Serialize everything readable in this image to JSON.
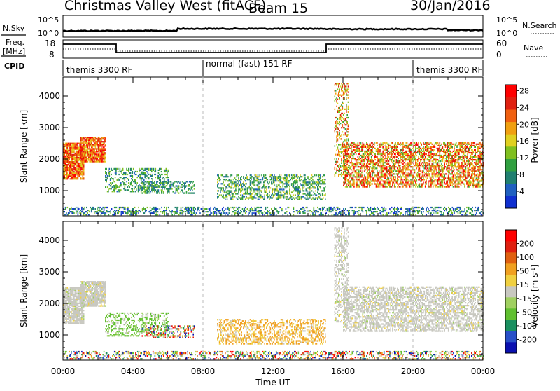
{
  "header": {
    "title": "Christmas Valley West (fitACF)",
    "beam": "Beam 15",
    "date": "30/Jan/2016"
  },
  "panels": {
    "nsky": {
      "left_label": "N.Sky",
      "left_ticks": [
        "10^5",
        "10^0"
      ],
      "right_ticks": [
        "10^5",
        "10^0"
      ],
      "right_label": "N.Search"
    },
    "freq": {
      "left_label_1": "Freq.",
      "left_label_2": "[MHz]",
      "left_ticks": [
        "18",
        "8"
      ],
      "right_ticks": [
        "60",
        "0"
      ],
      "right_label": "Nave"
    },
    "cpid": {
      "label": "CPID",
      "segments": [
        {
          "label": "themis 3300 RF",
          "start_h": 0
        },
        {
          "label": "normal (fast) 151 RF",
          "start_h": 8
        },
        {
          "label": "themis 3300 RF",
          "start_h": 20
        }
      ]
    }
  },
  "chart_data": [
    {
      "type": "heatmap",
      "name": "power",
      "ylabel": "Slant Range [km]",
      "ylim": [
        200,
        4600
      ],
      "xlim": [
        0,
        24
      ],
      "yticks": [
        1000,
        2000,
        3000,
        4000
      ],
      "colorbar": {
        "label": "Power [dB]",
        "ticks": [
          "4",
          "8",
          "12",
          "16",
          "20",
          "24",
          "28"
        ],
        "colors": [
          "#1030d0",
          "#2060c0",
          "#208070",
          "#30a040",
          "#80c020",
          "#e0d020",
          "#f0a010",
          "#f06010",
          "#e02010",
          "#ff0000"
        ]
      }
    },
    {
      "type": "heatmap",
      "name": "velocity",
      "ylabel": "Slant Range [km]",
      "xlabel": "Time UT",
      "ylim": [
        200,
        4600
      ],
      "xlim": [
        0,
        24
      ],
      "yticks": [
        1000,
        2000,
        3000,
        4000
      ],
      "xticks": [
        "00:00",
        "04:00",
        "08:00",
        "12:00",
        "16:00",
        "20:00",
        "00:00"
      ],
      "colorbar": {
        "label": "Velocity [m s",
        "label_sup": "-1",
        "label_end": "]",
        "ticks": [
          "200",
          "100",
          "50",
          "15",
          "-15",
          "-50",
          "-100",
          "-200"
        ],
        "colors": [
          "#0a10b0",
          "#2850c8",
          "#1a9060",
          "#60c030",
          "#a0d060",
          "#c8c8c0",
          "#f0d040",
          "#f0a020",
          "#e06010",
          "#e02010",
          "#ff0000"
        ]
      }
    }
  ]
}
